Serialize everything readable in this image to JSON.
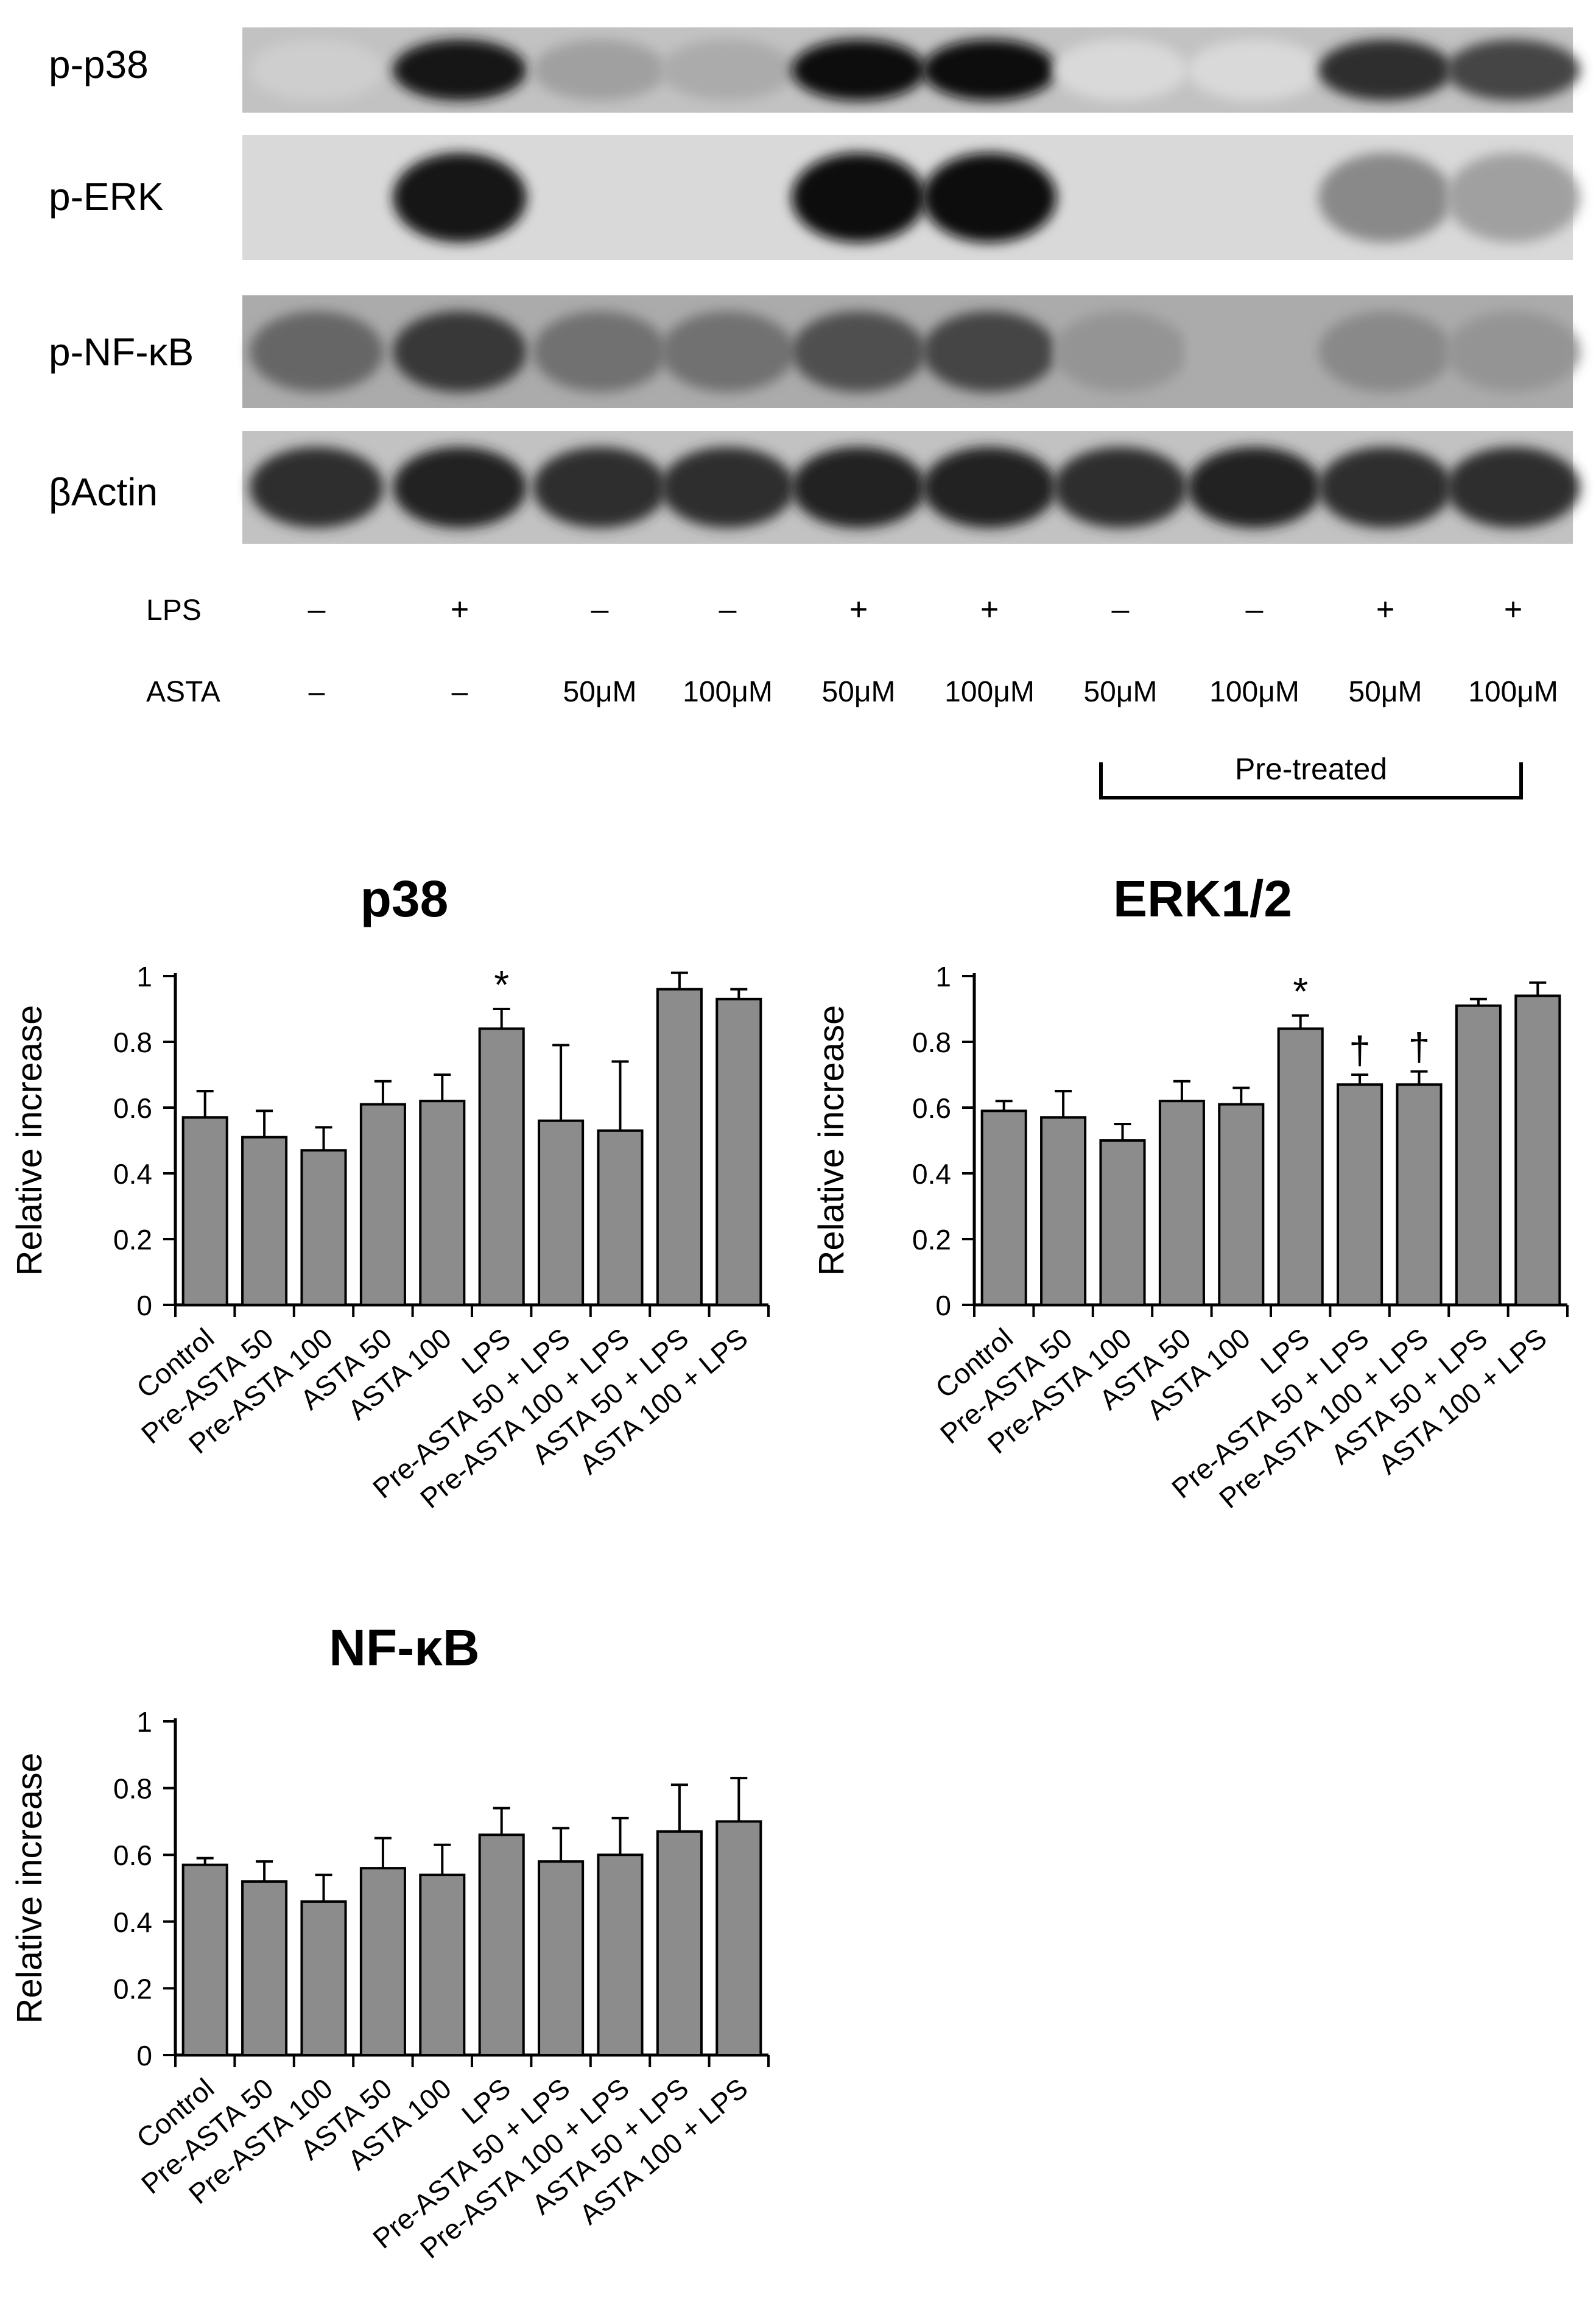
{
  "blot": {
    "rows": [
      {
        "label": "p-p38",
        "lanes": [
          0.15,
          0.95,
          0.35,
          0.3,
          1.0,
          1.0,
          0.1,
          0.1,
          0.85,
          0.75
        ],
        "background": 0.2
      },
      {
        "label": "p-ERK",
        "lanes": [
          0.0,
          0.95,
          0.0,
          0.0,
          1.0,
          1.0,
          0.0,
          0.0,
          0.45,
          0.35
        ],
        "background": 0.1
      },
      {
        "label": "p-NF-κB",
        "lanes": [
          0.6,
          0.8,
          0.55,
          0.55,
          0.7,
          0.75,
          0.4,
          0.3,
          0.45,
          0.4
        ],
        "background": 0.3
      },
      {
        "label": "βActin",
        "lanes": [
          0.85,
          0.9,
          0.85,
          0.85,
          0.9,
          0.9,
          0.85,
          0.9,
          0.85,
          0.85
        ],
        "background": 0.2
      }
    ],
    "lps_label": "LPS",
    "asta_label": "ASTA",
    "lps_values": [
      "–",
      "+",
      "–",
      "–",
      "+",
      "+",
      "–",
      "–",
      "+",
      "+"
    ],
    "asta_values": [
      "–",
      "–",
      "50μM",
      "100μM",
      "50μM",
      "100μM",
      "50μM",
      "100μM",
      "50μM",
      "100μM"
    ],
    "pretreated_label": "Pre-treated"
  },
  "chart_data": [
    {
      "type": "bar",
      "title": "p38",
      "ylabel": "Relative increase",
      "xlabel": "",
      "ylim": [
        0,
        1
      ],
      "yticks": [
        "0",
        "0.2",
        "0.4",
        "0.6",
        "0.8",
        "1"
      ],
      "categories": [
        "Control",
        "Pre-ASTA 50",
        "Pre-ASTA 100",
        "ASTA 50",
        "ASTA 100",
        "LPS",
        "Pre-ASTA 50 + LPS",
        "Pre-ASTA 100 + LPS",
        "ASTA 50 + LPS",
        "ASTA 100 + LPS"
      ],
      "values": [
        0.57,
        0.51,
        0.47,
        0.61,
        0.62,
        0.84,
        0.56,
        0.53,
        0.96,
        0.93
      ],
      "errors": [
        0.08,
        0.08,
        0.07,
        0.07,
        0.08,
        0.06,
        0.23,
        0.21,
        0.05,
        0.03
      ],
      "annotations": [
        "",
        "",
        "",
        "",
        "",
        "*",
        "",
        "",
        "",
        ""
      ],
      "bar_color": "#8c8c8c",
      "grid": false,
      "legend": "none"
    },
    {
      "type": "bar",
      "title": "ERK1/2",
      "ylabel": "Relative increase",
      "xlabel": "",
      "ylim": [
        0,
        1
      ],
      "yticks": [
        "0",
        "0.2",
        "0.4",
        "0.6",
        "0.8",
        "1"
      ],
      "categories": [
        "Control",
        "Pre-ASTA 50",
        "Pre-ASTA 100",
        "ASTA 50",
        "ASTA 100",
        "LPS",
        "Pre-ASTA 50 + LPS",
        "Pre-ASTA 100 + LPS",
        "ASTA 50 + LPS",
        "ASTA 100 + LPS"
      ],
      "values": [
        0.59,
        0.57,
        0.5,
        0.62,
        0.61,
        0.84,
        0.67,
        0.67,
        0.91,
        0.94
      ],
      "errors": [
        0.03,
        0.08,
        0.05,
        0.06,
        0.05,
        0.04,
        0.03,
        0.04,
        0.02,
        0.04
      ],
      "annotations": [
        "",
        "",
        "",
        "",
        "",
        "*",
        "†",
        "†",
        "",
        ""
      ],
      "bar_color": "#8c8c8c",
      "grid": false,
      "legend": "none"
    },
    {
      "type": "bar",
      "title": "NF-κB",
      "ylabel": "Relative increase",
      "xlabel": "",
      "ylim": [
        0,
        1
      ],
      "yticks": [
        "0",
        "0.2",
        "0.4",
        "0.6",
        "0.8",
        "1"
      ],
      "categories": [
        "Control",
        "Pre-ASTA 50",
        "Pre-ASTA 100",
        "ASTA 50",
        "ASTA 100",
        "LPS",
        "Pre-ASTA 50 + LPS",
        "Pre-ASTA 100 + LPS",
        "ASTA 50 + LPS",
        "ASTA 100 + LPS"
      ],
      "values": [
        0.57,
        0.52,
        0.46,
        0.56,
        0.54,
        0.66,
        0.58,
        0.6,
        0.67,
        0.7
      ],
      "errors": [
        0.02,
        0.06,
        0.08,
        0.09,
        0.09,
        0.08,
        0.1,
        0.11,
        0.14,
        0.13
      ],
      "annotations": [
        "",
        "",
        "",
        "",
        "",
        "",
        "",
        "",
        "",
        ""
      ],
      "bar_color": "#8c8c8c",
      "grid": false,
      "legend": "none"
    }
  ]
}
